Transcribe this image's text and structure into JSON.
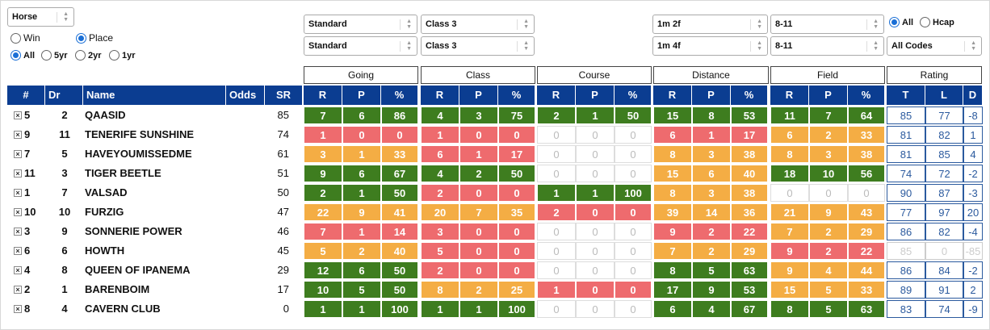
{
  "filters": {
    "type_select": "Horse",
    "bet_type": {
      "win_label": "Win",
      "place_label": "Place",
      "selected": "Place"
    },
    "period": {
      "all_label": "All",
      "y5_label": "5yr",
      "y2_label": "2yr",
      "y1_label": "1yr",
      "selected": "All"
    },
    "going_1": "Standard",
    "going_2": "Standard",
    "class_1": "Class 3",
    "class_2": "Class 3",
    "distance_1": "1m 2f",
    "distance_2": "1m 4f",
    "field_1": "8-11",
    "field_2": "8-11",
    "race_type": {
      "all_label": "All",
      "hcap_label": "Hcap",
      "selected": "All"
    },
    "codes": "All Codes"
  },
  "groups": {
    "going": "Going",
    "class": "Class",
    "course": "Course",
    "distance": "Distance",
    "field": "Field",
    "rating": "Rating"
  },
  "columns": {
    "num": "#",
    "draw": "Dr",
    "name": "Name",
    "odds": "Odds",
    "sr": "SR",
    "r": "R",
    "p": "P",
    "pct": "%",
    "t": "T",
    "l": "L",
    "d": "D"
  },
  "rows": [
    {
      "num": "5",
      "dr": "2",
      "name": "QAASID",
      "odds": "",
      "sr": "85",
      "going": [
        "7",
        "6",
        "86"
      ],
      "class": [
        "4",
        "3",
        "75"
      ],
      "course": [
        "2",
        "1",
        "50"
      ],
      "distance": [
        "15",
        "8",
        "53"
      ],
      "field": [
        "11",
        "7",
        "64"
      ],
      "rating": [
        "85",
        "77",
        "-8"
      ]
    },
    {
      "num": "9",
      "dr": "11",
      "name": "TENERIFE SUNSHINE",
      "odds": "",
      "sr": "74",
      "going": [
        "1",
        "0",
        "0"
      ],
      "class": [
        "1",
        "0",
        "0"
      ],
      "course": [
        "0",
        "0",
        "0"
      ],
      "distance": [
        "6",
        "1",
        "17"
      ],
      "field": [
        "6",
        "2",
        "33"
      ],
      "rating": [
        "81",
        "82",
        "1"
      ]
    },
    {
      "num": "7",
      "dr": "5",
      "name": "HAVEYOUMISSEDME",
      "odds": "",
      "sr": "61",
      "going": [
        "3",
        "1",
        "33"
      ],
      "class": [
        "6",
        "1",
        "17"
      ],
      "course": [
        "0",
        "0",
        "0"
      ],
      "distance": [
        "8",
        "3",
        "38"
      ],
      "field": [
        "8",
        "3",
        "38"
      ],
      "rating": [
        "81",
        "85",
        "4"
      ]
    },
    {
      "num": "11",
      "dr": "3",
      "name": "TIGER BEETLE",
      "odds": "",
      "sr": "51",
      "going": [
        "9",
        "6",
        "67"
      ],
      "class": [
        "4",
        "2",
        "50"
      ],
      "course": [
        "0",
        "0",
        "0"
      ],
      "distance": [
        "15",
        "6",
        "40"
      ],
      "field": [
        "18",
        "10",
        "56"
      ],
      "rating": [
        "74",
        "72",
        "-2"
      ]
    },
    {
      "num": "1",
      "dr": "7",
      "name": "VALSAD",
      "odds": "",
      "sr": "50",
      "going": [
        "2",
        "1",
        "50"
      ],
      "class": [
        "2",
        "0",
        "0"
      ],
      "course": [
        "1",
        "1",
        "100"
      ],
      "distance": [
        "8",
        "3",
        "38"
      ],
      "field": [
        "0",
        "0",
        "0"
      ],
      "rating": [
        "90",
        "87",
        "-3"
      ]
    },
    {
      "num": "10",
      "dr": "10",
      "name": "FURZIG",
      "odds": "",
      "sr": "47",
      "going": [
        "22",
        "9",
        "41"
      ],
      "class": [
        "20",
        "7",
        "35"
      ],
      "course": [
        "2",
        "0",
        "0"
      ],
      "distance": [
        "39",
        "14",
        "36"
      ],
      "field": [
        "21",
        "9",
        "43"
      ],
      "rating": [
        "77",
        "97",
        "20"
      ]
    },
    {
      "num": "3",
      "dr": "9",
      "name": "SONNERIE POWER",
      "odds": "",
      "sr": "46",
      "going": [
        "7",
        "1",
        "14"
      ],
      "class": [
        "3",
        "0",
        "0"
      ],
      "course": [
        "0",
        "0",
        "0"
      ],
      "distance": [
        "9",
        "2",
        "22"
      ],
      "field": [
        "7",
        "2",
        "29"
      ],
      "rating": [
        "86",
        "82",
        "-4"
      ]
    },
    {
      "num": "6",
      "dr": "6",
      "name": "HOWTH",
      "odds": "",
      "sr": "45",
      "going": [
        "5",
        "2",
        "40"
      ],
      "class": [
        "5",
        "0",
        "0"
      ],
      "course": [
        "0",
        "0",
        "0"
      ],
      "distance": [
        "7",
        "2",
        "29"
      ],
      "field": [
        "9",
        "2",
        "22"
      ],
      "rating": [
        "85",
        "0",
        "-85"
      ]
    },
    {
      "num": "4",
      "dr": "8",
      "name": "QUEEN OF IPANEMA",
      "odds": "",
      "sr": "29",
      "going": [
        "12",
        "6",
        "50"
      ],
      "class": [
        "2",
        "0",
        "0"
      ],
      "course": [
        "0",
        "0",
        "0"
      ],
      "distance": [
        "8",
        "5",
        "63"
      ],
      "field": [
        "9",
        "4",
        "44"
      ],
      "rating": [
        "86",
        "84",
        "-2"
      ]
    },
    {
      "num": "2",
      "dr": "1",
      "name": "BARENBOIM",
      "odds": "",
      "sr": "17",
      "going": [
        "10",
        "5",
        "50"
      ],
      "class": [
        "8",
        "2",
        "25"
      ],
      "course": [
        "1",
        "0",
        "0"
      ],
      "distance": [
        "17",
        "9",
        "53"
      ],
      "field": [
        "15",
        "5",
        "33"
      ],
      "rating": [
        "89",
        "91",
        "2"
      ]
    },
    {
      "num": "8",
      "dr": "4",
      "name": "CAVERN CLUB",
      "odds": "",
      "sr": "0",
      "going": [
        "1",
        "1",
        "100"
      ],
      "class": [
        "1",
        "1",
        "100"
      ],
      "course": [
        "0",
        "0",
        "0"
      ],
      "distance": [
        "6",
        "4",
        "67"
      ],
      "field": [
        "8",
        "5",
        "63"
      ],
      "rating": [
        "83",
        "74",
        "-9"
      ]
    }
  ],
  "colors": {
    "header_bg": "#0b3d91",
    "good": "#3e7d1f",
    "medium": "#f4ad44",
    "poor": "#ee6b6e",
    "rating_text": "#2b5a9e"
  }
}
